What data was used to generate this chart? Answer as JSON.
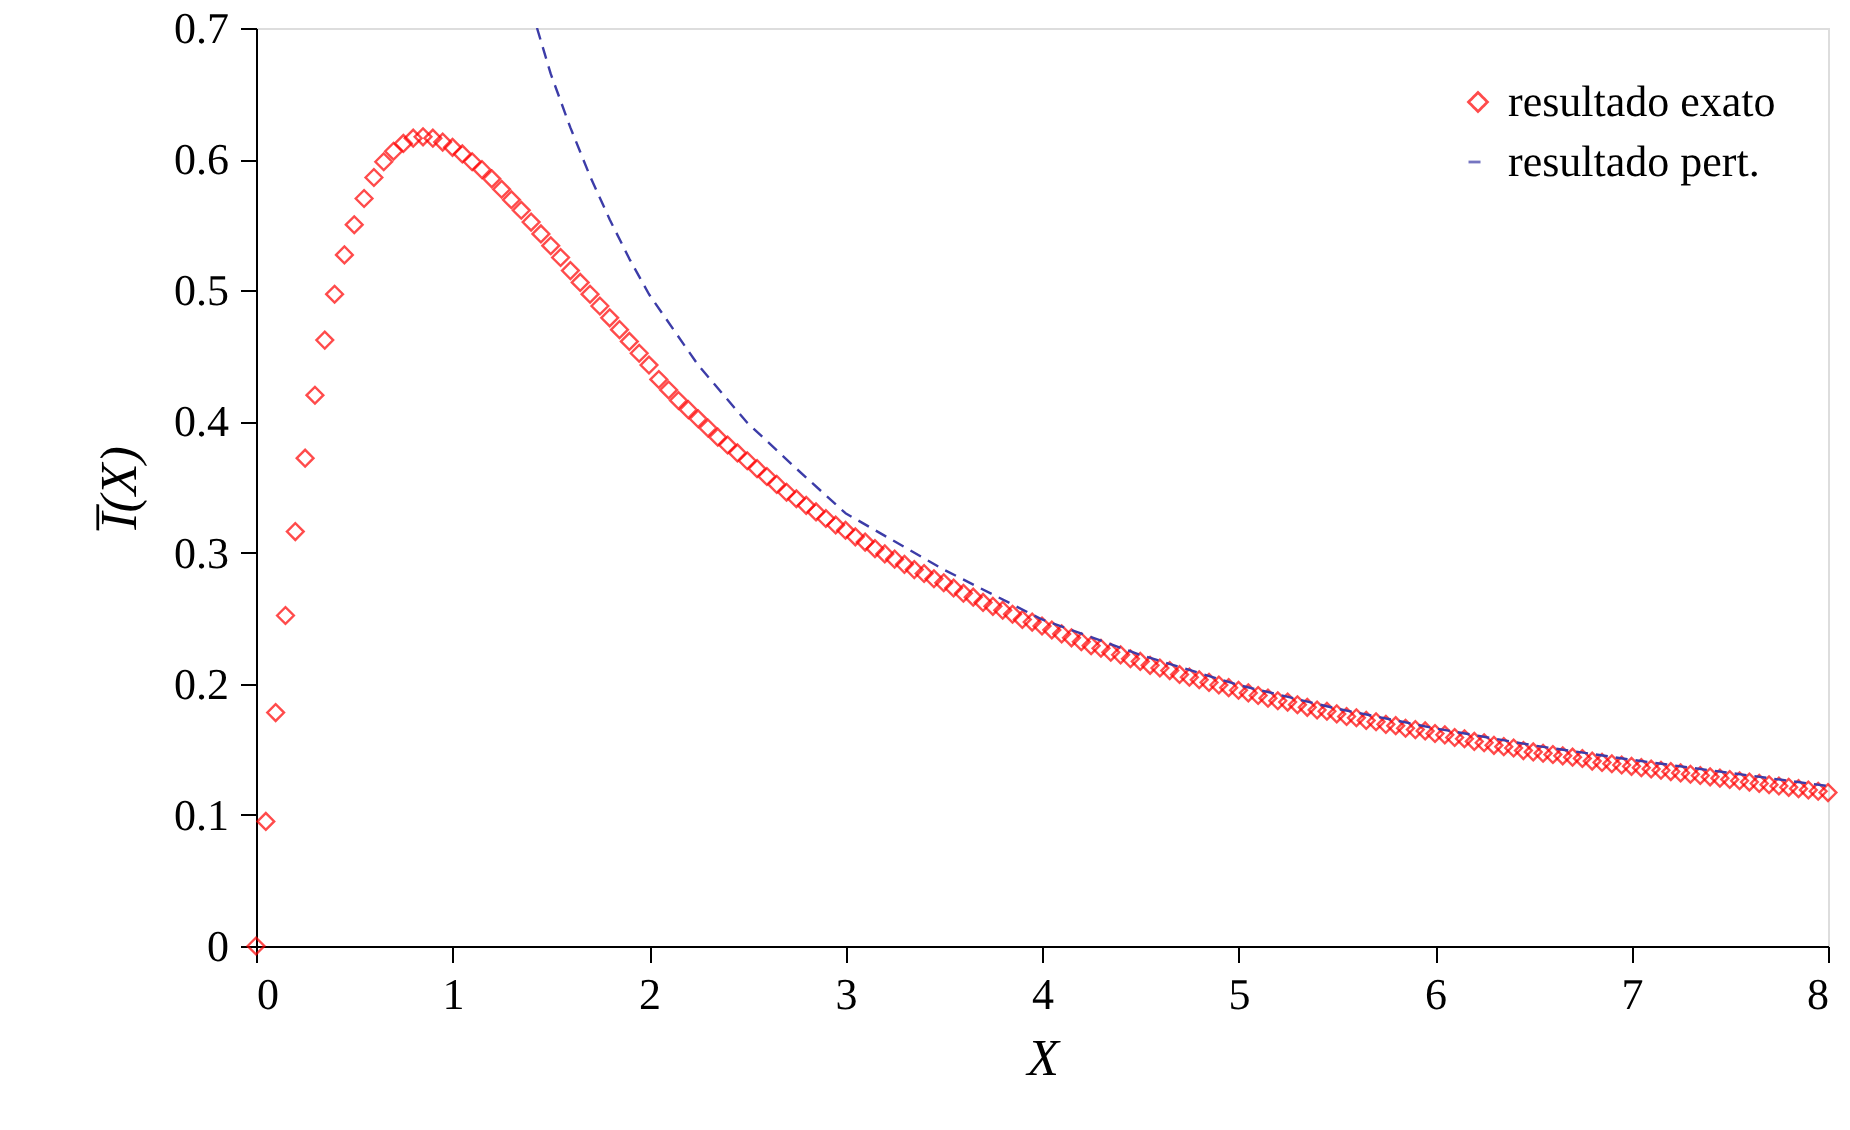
{
  "chart_data": {
    "type": "scatter",
    "xlabel": "X",
    "ylabel": "I̅(X)",
    "xlim": [
      0,
      8
    ],
    "ylim": [
      0,
      0.7
    ],
    "xticks": [
      0,
      1,
      2,
      3,
      4,
      5,
      6,
      7,
      8
    ],
    "yticks": [
      0,
      0.1,
      0.2,
      0.3,
      0.4,
      0.5,
      0.6,
      0.7
    ],
    "grid": false,
    "legend": "top right",
    "series": [
      {
        "name": "resultado exato",
        "color": "#ff0000",
        "marker": "diamond",
        "x": [
          0,
          0.05,
          0.1,
          0.15,
          0.2,
          0.25,
          0.3,
          0.35,
          0.4,
          0.45,
          0.5,
          0.55,
          0.6,
          0.65,
          0.7,
          0.75,
          0.8,
          0.85,
          0.9,
          0.95,
          1.0,
          1.05,
          1.1,
          1.15,
          1.2,
          1.25,
          1.3,
          1.35,
          1.4,
          1.45,
          1.5,
          1.55,
          1.6,
          1.65,
          1.7,
          1.75,
          1.8,
          1.85,
          1.9,
          1.95,
          2.0,
          2.05,
          2.1,
          2.15,
          2.2,
          2.25,
          2.3,
          2.35,
          2.4,
          2.45,
          2.5,
          2.55,
          2.6,
          2.65,
          2.7,
          2.75,
          2.8,
          2.85,
          2.9,
          2.95,
          3.0,
          3.05,
          3.1,
          3.15,
          3.2,
          3.25,
          3.3,
          3.35,
          3.4,
          3.45,
          3.5,
          3.55,
          3.6,
          3.65,
          3.7,
          3.75,
          3.8,
          3.85,
          3.9,
          3.95,
          4.0,
          4.05,
          4.1,
          4.15,
          4.2,
          4.25,
          4.3,
          4.35,
          4.4,
          4.45,
          4.5,
          4.55,
          4.6,
          4.65,
          4.7,
          4.75,
          4.8,
          4.85,
          4.9,
          4.95,
          5.0,
          5.05,
          5.1,
          5.15,
          5.2,
          5.25,
          5.3,
          5.35,
          5.4,
          5.45,
          5.5,
          5.55,
          5.6,
          5.65,
          5.7,
          5.75,
          5.8,
          5.85,
          5.9,
          5.95,
          6.0,
          6.05,
          6.1,
          6.15,
          6.2,
          6.25,
          6.3,
          6.35,
          6.4,
          6.45,
          6.5,
          6.55,
          6.6,
          6.65,
          6.7,
          6.75,
          6.8,
          6.85,
          6.9,
          6.95,
          7.0,
          7.05,
          7.1,
          7.15,
          7.2,
          7.25,
          7.3,
          7.35,
          7.4,
          7.45,
          7.5,
          7.55,
          7.6,
          7.65,
          7.7,
          7.75,
          7.8,
          7.85,
          7.9,
          7.95,
          8.0
        ],
        "values": [
          0,
          0.095,
          0.178,
          0.252,
          0.316,
          0.372,
          0.42,
          0.462,
          0.497,
          0.527,
          0.55,
          0.57,
          0.586,
          0.598,
          0.606,
          0.612,
          0.616,
          0.617,
          0.616,
          0.613,
          0.609,
          0.604,
          0.598,
          0.592,
          0.585,
          0.577,
          0.569,
          0.561,
          0.552,
          0.543,
          0.534,
          0.525,
          0.515,
          0.506,
          0.497,
          0.488,
          0.479,
          0.47,
          0.461,
          0.452,
          0.443,
          0.432,
          0.424,
          0.416,
          0.409,
          0.402,
          0.395,
          0.388,
          0.382,
          0.376,
          0.37,
          0.364,
          0.358,
          0.352,
          0.346,
          0.341,
          0.336,
          0.331,
          0.326,
          0.321,
          0.317,
          0.312,
          0.308,
          0.303,
          0.299,
          0.295,
          0.291,
          0.287,
          0.284,
          0.28,
          0.277,
          0.273,
          0.269,
          0.266,
          0.262,
          0.259,
          0.256,
          0.253,
          0.249,
          0.247,
          0.244,
          0.241,
          0.238,
          0.235,
          0.232,
          0.229,
          0.227,
          0.224,
          0.222,
          0.219,
          0.217,
          0.214,
          0.212,
          0.21,
          0.207,
          0.205,
          0.203,
          0.201,
          0.199,
          0.197,
          0.195,
          0.193,
          0.191,
          0.189,
          0.187,
          0.186,
          0.184,
          0.182,
          0.18,
          0.179,
          0.177,
          0.175,
          0.174,
          0.172,
          0.171,
          0.169,
          0.168,
          0.166,
          0.165,
          0.164,
          0.162,
          0.161,
          0.159,
          0.158,
          0.156,
          0.155,
          0.153,
          0.152,
          0.151,
          0.149,
          0.148,
          0.147,
          0.146,
          0.145,
          0.144,
          0.143,
          0.141,
          0.14,
          0.139,
          0.138,
          0.137,
          0.136,
          0.135,
          0.134,
          0.133,
          0.132,
          0.131,
          0.13,
          0.129,
          0.128,
          0.127,
          0.126,
          0.125,
          0.124,
          0.123,
          0.122,
          0.121,
          0.12,
          0.119,
          0.118,
          0.117
        ]
      },
      {
        "name": "resultado pert.",
        "color": "#3c3ca8",
        "type": "line",
        "line_style": "dashed",
        "x": [
          1.43,
          1.5,
          1.6,
          1.7,
          1.8,
          1.9,
          2,
          2.25,
          2.5,
          2.75,
          3,
          3.5,
          4,
          4.5,
          5,
          5.5,
          6,
          6.5,
          7,
          7.5,
          8
        ],
        "values": [
          0.7,
          0.665,
          0.624,
          0.587,
          0.554,
          0.524,
          0.497,
          0.443,
          0.399,
          0.364,
          0.33,
          0.287,
          0.249,
          0.222,
          0.199,
          0.181,
          0.166,
          0.153,
          0.142,
          0.132,
          0.122
        ]
      }
    ]
  }
}
